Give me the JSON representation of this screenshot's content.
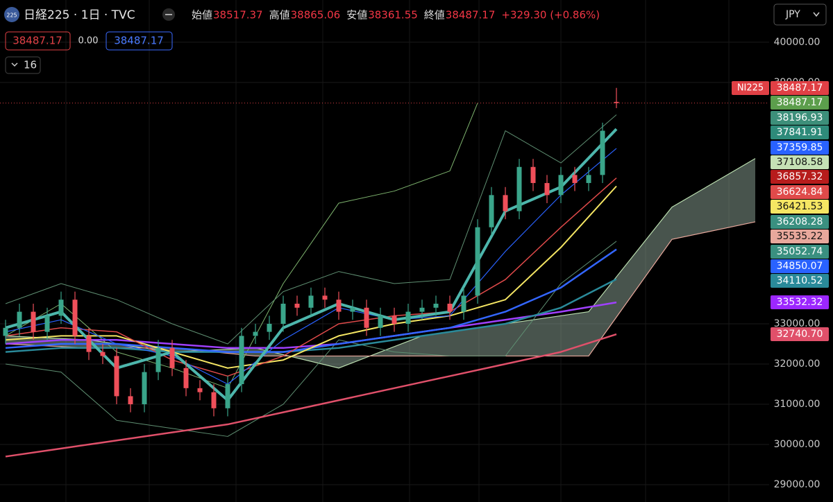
{
  "chart_data": {
    "type": "candlestick",
    "title": "日経225 · 1日 · TVC",
    "badge": "225",
    "ohlc_header": [
      {
        "name": "始値",
        "value": "38517.37"
      },
      {
        "name": "高値",
        "value": "38865.06"
      },
      {
        "name": "安値",
        "value": "38361.55"
      },
      {
        "name": "終値",
        "value": "38487.17"
      }
    ],
    "change": "+329.30 (+0.86%)",
    "order_boxes": [
      "38487.17",
      "0.00",
      "38487.17"
    ],
    "indicator_count": "16",
    "currency": "JPY",
    "symbol_tag": "NI225",
    "ylim": [
      28570,
      41050
    ],
    "yticks": [
      {
        "value": 29000,
        "label": "29000.00"
      },
      {
        "value": 30000,
        "label": "30000.00"
      },
      {
        "value": 31000,
        "label": "31000.00"
      },
      {
        "value": 32000,
        "label": "32000.00"
      },
      {
        "value": 33000,
        "label": "33000.00"
      },
      {
        "value": 39000,
        "label": "39000.00"
      },
      {
        "value": 40000,
        "label": "40000.00"
      }
    ],
    "grid": true,
    "up_color": "#3aa58a",
    "down_color": "#ef4f5a",
    "candles": {
      "open": [
        32700,
        32900,
        33300,
        32800,
        33200,
        33600,
        32700,
        32300,
        32200,
        31200,
        31000,
        31800,
        32400,
        31900,
        31400,
        31300,
        30900,
        31500,
        32700,
        32800,
        33000,
        33500,
        33400,
        33700,
        33600,
        33300,
        33400,
        32900,
        33200,
        33000,
        33300,
        33400,
        33500,
        33300,
        33700,
        35400,
        36200,
        35800,
        36900,
        36500,
        36200,
        36700,
        36500,
        36700,
        38517.37
      ],
      "high": [
        33100,
        33500,
        33500,
        33400,
        33800,
        33800,
        32900,
        32500,
        32400,
        31400,
        32000,
        32600,
        32600,
        32100,
        31600,
        31500,
        31700,
        32900,
        33000,
        33200,
        33700,
        33700,
        33900,
        33900,
        33800,
        33600,
        33600,
        33400,
        33400,
        33500,
        33600,
        33700,
        33700,
        33900,
        35600,
        36400,
        36400,
        37100,
        37100,
        36700,
        36900,
        36900,
        36900,
        38000,
        38865.06
      ],
      "low": [
        32500,
        32700,
        32600,
        32600,
        33000,
        32500,
        32100,
        32000,
        31000,
        30800,
        30800,
        31600,
        31700,
        31200,
        31100,
        30700,
        30700,
        31300,
        32500,
        32600,
        32800,
        33200,
        33200,
        33400,
        33100,
        33100,
        32700,
        32700,
        32800,
        32800,
        33100,
        33200,
        33100,
        33100,
        33500,
        35200,
        35600,
        35600,
        36300,
        36000,
        36000,
        36300,
        36300,
        36500,
        38361.55
      ],
      "close": [
        32900,
        33300,
        32800,
        33200,
        33600,
        32700,
        32300,
        32200,
        31200,
        31000,
        31800,
        32400,
        31900,
        31400,
        31300,
        30900,
        31500,
        32700,
        32800,
        33000,
        33500,
        33400,
        33700,
        33600,
        33300,
        33400,
        32900,
        33200,
        33000,
        33300,
        33400,
        33500,
        33300,
        33700,
        35400,
        36200,
        35800,
        36900,
        36500,
        36200,
        36700,
        36500,
        36700,
        37800,
        38487.17
      ]
    },
    "current_price": 38487.17,
    "series": [
      {
        "color": "#7fb56f",
        "width": 1,
        "x": [
          0,
          4,
          8,
          12,
          16,
          20,
          24,
          28,
          32,
          34
        ],
        "values": [
          32700,
          33500,
          32300,
          31900,
          31400,
          34000,
          36000,
          36300,
          36800,
          38487.17
        ]
      },
      {
        "color": "#5f8f72",
        "width": 1,
        "x": [
          0,
          4,
          8,
          12,
          16,
          20,
          24,
          28,
          32,
          36,
          40,
          44
        ],
        "values": [
          33500,
          34000,
          33600,
          33000,
          32500,
          33800,
          34300,
          34000,
          34100,
          37800,
          37000,
          38196.93
        ]
      },
      {
        "color": "#5f8f72",
        "width": 1,
        "x": [
          0,
          4,
          8,
          12,
          16,
          20,
          24,
          28,
          32,
          36,
          40,
          44
        ],
        "values": [
          32000,
          31800,
          30600,
          30400,
          30200,
          31000,
          32600,
          32300,
          32200,
          32200,
          34000,
          35052.74
        ]
      },
      {
        "color": "#e0506a",
        "width": 2.5,
        "x": [
          0,
          4,
          8,
          12,
          16,
          20,
          24,
          28,
          32,
          36,
          40,
          44
        ],
        "values": [
          29700,
          29900,
          30100,
          30300,
          30500,
          30800,
          31100,
          31400,
          31700,
          32000,
          32300,
          32740.7
        ]
      },
      {
        "color": "#a040ff",
        "width": 2.5,
        "x": [
          0,
          4,
          8,
          12,
          16,
          20,
          24,
          28,
          32,
          36,
          40,
          44
        ],
        "values": [
          32500,
          32600,
          32600,
          32500,
          32400,
          32400,
          32500,
          32700,
          32900,
          33100,
          33300,
          33532.32
        ]
      },
      {
        "color": "#2a8a9a",
        "width": 2.5,
        "x": [
          0,
          4,
          8,
          12,
          16,
          20,
          24,
          28,
          32,
          36,
          40,
          44
        ],
        "values": [
          32300,
          32400,
          32400,
          32300,
          32300,
          32300,
          32400,
          32600,
          32800,
          33000,
          33400,
          34110.52
        ]
      },
      {
        "color": "#3366ff",
        "width": 2.5,
        "x": [
          0,
          4,
          8,
          12,
          16,
          20,
          24,
          28,
          32,
          36,
          40,
          44
        ],
        "values": [
          32400,
          32500,
          32500,
          32400,
          32300,
          32300,
          32500,
          32700,
          32900,
          33300,
          33900,
          34850.07
        ]
      },
      {
        "color": "#f5e663",
        "width": 2,
        "x": [
          0,
          4,
          8,
          12,
          16,
          20,
          24,
          28,
          32,
          36,
          40,
          44
        ],
        "values": [
          32600,
          32700,
          32700,
          32300,
          31900,
          32100,
          32700,
          33000,
          33200,
          33600,
          34900,
          36421.53
        ]
      },
      {
        "color": "#e04a4a",
        "width": 1.5,
        "x": [
          0,
          4,
          8,
          12,
          16,
          20,
          24,
          28,
          32,
          36,
          40,
          44
        ],
        "values": [
          32700,
          32900,
          32800,
          32100,
          31700,
          32200,
          33000,
          33200,
          33300,
          34100,
          35400,
          36624.84
        ]
      },
      {
        "color": "#2962ff",
        "width": 1.2,
        "x": [
          0,
          4,
          8,
          12,
          16,
          20,
          24,
          28,
          32,
          36,
          40,
          44
        ],
        "values": [
          32800,
          33100,
          32500,
          32200,
          31500,
          32600,
          33400,
          33100,
          33200,
          34800,
          36200,
          37359.85
        ]
      },
      {
        "color": "#4db6ac",
        "width": 4,
        "x": [
          0,
          4,
          8,
          12,
          16,
          20,
          24,
          28,
          32,
          36,
          40,
          44
        ],
        "values": [
          32900,
          33300,
          31900,
          32300,
          31100,
          32900,
          33500,
          33100,
          33300,
          35800,
          36400,
          37841.91
        ]
      }
    ],
    "cloud": {
      "x": [
        0,
        6,
        12,
        18,
        24,
        30,
        36,
        42,
        48,
        54
      ],
      "span_a": [
        32700,
        32600,
        32300,
        32400,
        31900,
        32700,
        33000,
        33300,
        35900,
        37108.58
      ],
      "span_b": [
        32500,
        32400,
        32400,
        32200,
        32200,
        32200,
        32200,
        32200,
        35100,
        35535.22
      ],
      "color": "#8fa89a",
      "span_a_color": "#b9dcae",
      "span_b_color": "#e8a89c"
    },
    "price_labels": [
      {
        "label": "38487.17",
        "color": "#e04045",
        "text": "#ffffff"
      },
      {
        "label": "38487.17",
        "color": "#5c9e4c",
        "text": "#ffffff"
      },
      {
        "label": "38196.93",
        "color": "#3d8f7a",
        "text": "#ffffff"
      },
      {
        "label": "37841.91",
        "color": "#2e8b7a",
        "text": "#ffffff"
      },
      {
        "label": "37359.85",
        "color": "#2962ff",
        "text": "#ffffff"
      },
      {
        "label": "37108.58",
        "color": "#c5e1b5",
        "text": "#111111"
      },
      {
        "label": "36857.32",
        "color": "#b71c1c",
        "text": "#ffffff"
      },
      {
        "label": "36624.84",
        "color": "#e04a4a",
        "text": "#ffffff"
      },
      {
        "label": "36421.53",
        "color": "#f5e663",
        "text": "#111111"
      },
      {
        "label": "36208.28",
        "color": "#3a9080",
        "text": "#ffffff"
      },
      {
        "label": "35535.22",
        "color": "#e8a89c",
        "text": "#111111"
      },
      {
        "label": "35052.74",
        "color": "#3a9080",
        "text": "#ffffff"
      },
      {
        "label": "34850.07",
        "color": "#2962ff",
        "text": "#ffffff"
      },
      {
        "label": "34110.52",
        "color": "#2a8a9a",
        "text": "#ffffff"
      },
      {
        "label": "33532.32",
        "color": "#9c27ff",
        "text": "#ffffff"
      },
      {
        "label": "32740.70",
        "color": "#e0506a",
        "text": "#ffffff"
      }
    ]
  }
}
